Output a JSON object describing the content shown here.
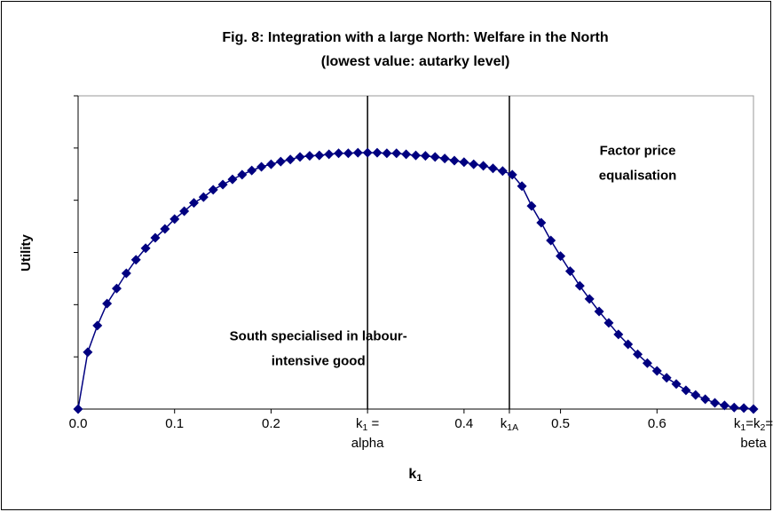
{
  "chart_data": {
    "type": "line",
    "title": [
      "Fig. 8: Integration with a large North: Welfare in the North",
      "(lowest value: autarky level)"
    ],
    "y_label": "Utility",
    "x_label": [
      "k",
      "1"
    ],
    "x": [
      0,
      0.01,
      0.02,
      0.03,
      0.04,
      0.05,
      0.06,
      0.07,
      0.08,
      0.09,
      0.1,
      0.11,
      0.12,
      0.13,
      0.14,
      0.15,
      0.16,
      0.17,
      0.18,
      0.19,
      0.2,
      0.21,
      0.22,
      0.23,
      0.24,
      0.25,
      0.26,
      0.27,
      0.28,
      0.29,
      0.3,
      0.31,
      0.32,
      0.33,
      0.34,
      0.35,
      0.36,
      0.37,
      0.38,
      0.39,
      0.4,
      0.41,
      0.42,
      0.43,
      0.44,
      0.45,
      0.46,
      0.47,
      0.48,
      0.49,
      0.5,
      0.51,
      0.52,
      0.53,
      0.54,
      0.55,
      0.56,
      0.57,
      0.58,
      0.59,
      0.6,
      0.61,
      0.62,
      0.63,
      0.64,
      0.65,
      0.66,
      0.67,
      0.68,
      0.69,
      0.7
    ],
    "series": [
      {
        "name": "Welfare in the North",
        "color": "#000080",
        "values": [
          0,
          1.09,
          1.6,
          2.02,
          2.31,
          2.6,
          2.86,
          3.08,
          3.28,
          3.45,
          3.64,
          3.79,
          3.95,
          4.06,
          4.2,
          4.3,
          4.4,
          4.49,
          4.57,
          4.64,
          4.69,
          4.74,
          4.78,
          4.83,
          4.85,
          4.86,
          4.88,
          4.9,
          4.9,
          4.91,
          4.91,
          4.91,
          4.9,
          4.9,
          4.88,
          4.86,
          4.85,
          4.83,
          4.8,
          4.76,
          4.73,
          4.69,
          4.66,
          4.61,
          4.56,
          4.49,
          4.27,
          3.89,
          3.57,
          3.23,
          2.93,
          2.64,
          2.36,
          2.11,
          1.87,
          1.65,
          1.43,
          1.24,
          1.05,
          0.88,
          0.73,
          0.6,
          0.48,
          0.36,
          0.27,
          0.19,
          0.12,
          0.07,
          0.03,
          0.02,
          0
        ]
      }
    ],
    "xlim": [
      0,
      0.7
    ],
    "xticks": [
      {
        "value": 0,
        "label": [
          [
            "0.0"
          ]
        ]
      },
      {
        "value": 0.1,
        "label": [
          [
            "0.1"
          ]
        ]
      },
      {
        "value": 0.2,
        "label": [
          [
            "0.2"
          ]
        ]
      },
      {
        "value": 0.3,
        "label": [
          [
            "k",
            "1",
            " ="
          ],
          [
            "alpha"
          ]
        ]
      },
      {
        "value": 0.4,
        "label": [
          [
            "0.4"
          ]
        ]
      },
      {
        "value": 0.447,
        "label": [
          [
            "k",
            "1A"
          ]
        ]
      },
      {
        "value": 0.5,
        "label": [
          [
            "0.5"
          ]
        ]
      },
      {
        "value": 0.6,
        "label": [
          [
            "0.6"
          ]
        ]
      },
      {
        "value": 0.7,
        "label": [
          [
            "k",
            "1",
            "=k",
            "2",
            "="
          ],
          [
            "beta"
          ]
        ]
      }
    ],
    "ylim": [
      0,
      6
    ],
    "yticks": [
      0,
      1,
      2,
      3,
      4,
      5,
      6
    ],
    "reference_lines": [
      0.3,
      0.447
    ],
    "annotations": [
      {
        "x": 0.58,
        "y": 4.7,
        "lines": [
          "Factor price",
          "equalisation"
        ]
      },
      {
        "x": 0.249,
        "y": 1.15,
        "lines": [
          "South specialised in labour-",
          "intensive good"
        ]
      }
    ]
  }
}
